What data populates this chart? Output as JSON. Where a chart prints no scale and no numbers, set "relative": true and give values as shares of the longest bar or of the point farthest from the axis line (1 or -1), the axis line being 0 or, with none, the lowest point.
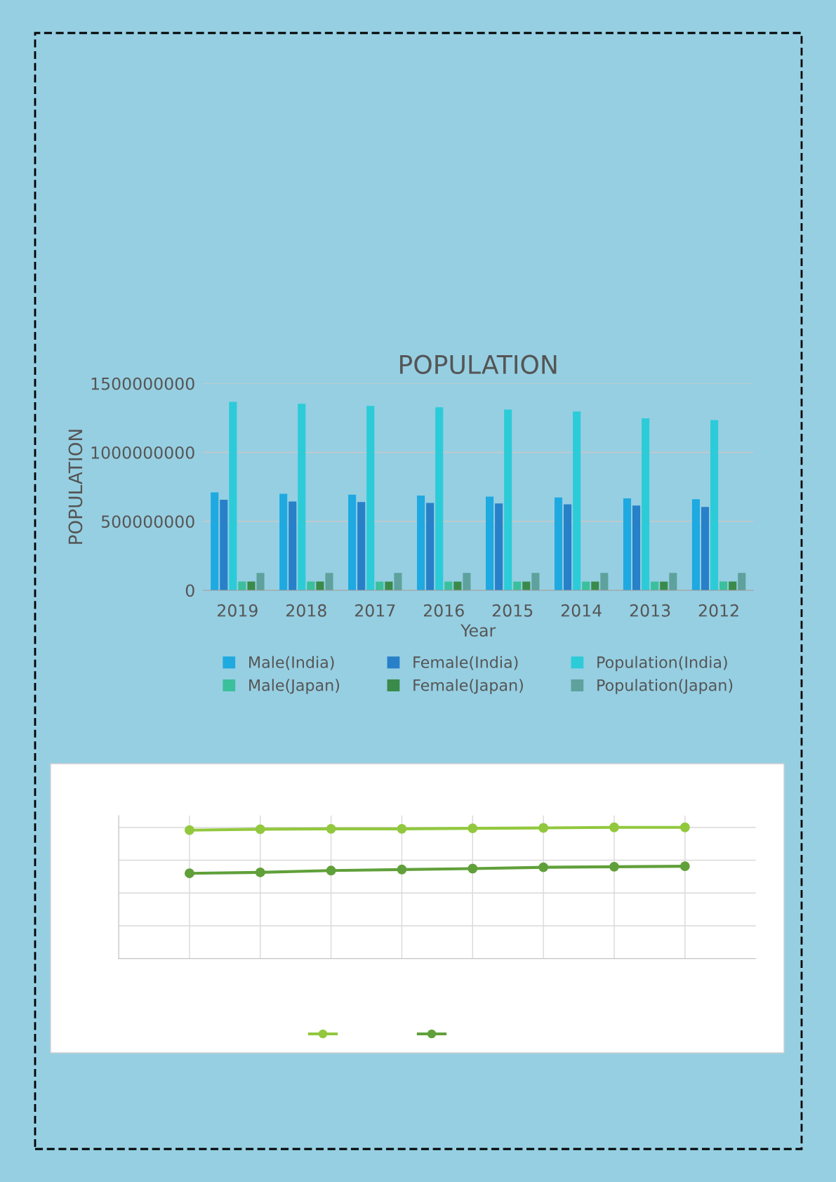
{
  "chart_data": [
    {
      "type": "bar",
      "title": "POPULATION",
      "xlabel": "Year",
      "ylabel": "POPULATION",
      "categories": [
        "2019",
        "2018",
        "2017",
        "2016",
        "2015",
        "2014",
        "2013",
        "2012"
      ],
      "series": [
        {
          "name": "Male(India)",
          "color": "#1ea9e1",
          "values": [
            710000000,
            700000000,
            693000000,
            687000000,
            680000000,
            673000000,
            667000000,
            660000000
          ]
        },
        {
          "name": "Female(India)",
          "color": "#2780c8",
          "values": [
            657000000,
            644000000,
            640000000,
            634000000,
            630000000,
            624000000,
            614000000,
            604000000
          ]
        },
        {
          "name": "Population(India)",
          "color": "#2ccbd8",
          "values": [
            1367000000,
            1353000000,
            1337000000,
            1327000000,
            1310000000,
            1297000000,
            1247000000,
            1234000000
          ]
        },
        {
          "name": "Male(Japan)",
          "color": "#3bbf9c",
          "values": [
            63000000,
            63000000,
            63000000,
            63000000,
            63000000,
            63000000,
            63000000,
            63000000
          ]
        },
        {
          "name": "Female(Japan)",
          "color": "#3a8a4a",
          "values": [
            63000000,
            63000000,
            63000000,
            63000000,
            63000000,
            63000000,
            63000000,
            63000000
          ]
        },
        {
          "name": "Population(Japan)",
          "color": "#5fa19c",
          "values": [
            126000000,
            126000000,
            126000000,
            126000000,
            126000000,
            126000000,
            126000000,
            126000000
          ]
        }
      ],
      "ylim": [
        0,
        1500000000
      ],
      "yticks": [
        0,
        500000000,
        1000000000,
        1500000000
      ],
      "grid": "y",
      "legend": "bottom"
    },
    {
      "type": "line",
      "relative": true,
      "categories": [
        null,
        null,
        null,
        null,
        null,
        null,
        null,
        null
      ],
      "series": [
        {
          "color": "#92c83e",
          "values": [
            0.979,
            0.986,
            0.989,
            0.989,
            0.993,
            0.996,
            1,
            1
          ]
        },
        {
          "color": "#60a03a",
          "values": [
            0.65,
            0.657,
            0.671,
            0.679,
            0.686,
            0.696,
            0.7,
            0.704
          ]
        }
      ],
      "grid": true,
      "marker": "circle",
      "line_style": "solid"
    }
  ]
}
